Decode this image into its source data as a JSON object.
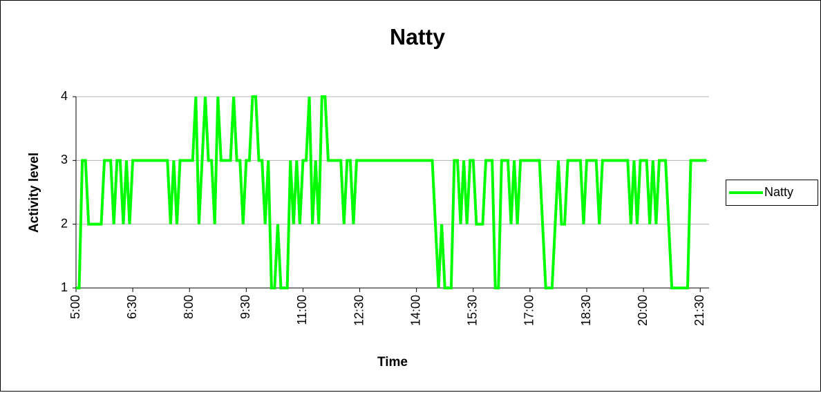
{
  "chart_data": {
    "type": "line",
    "title": "Natty",
    "x_label": "Time",
    "y_label": "Activity level",
    "x": [
      300,
      305,
      310,
      315,
      320,
      325,
      330,
      335,
      340,
      345,
      350,
      355,
      360,
      365,
      370,
      375,
      380,
      385,
      390,
      395,
      400,
      405,
      410,
      415,
      420,
      425,
      430,
      435,
      440,
      445,
      450,
      455,
      460,
      465,
      470,
      475,
      480,
      485,
      490,
      495,
      500,
      505,
      510,
      515,
      520,
      525,
      530,
      535,
      540,
      545,
      550,
      555,
      560,
      565,
      570,
      575,
      580,
      585,
      590,
      595,
      600,
      605,
      610,
      615,
      620,
      625,
      630,
      635,
      640,
      645,
      650,
      655,
      660,
      665,
      670,
      675,
      680,
      685,
      690,
      695,
      700,
      705,
      710,
      715,
      720,
      725,
      730,
      735,
      740,
      745,
      750,
      755,
      760,
      765,
      770,
      775,
      780,
      785,
      790,
      795,
      800,
      805,
      810,
      815,
      820,
      825,
      830,
      835,
      840,
      845,
      850,
      855,
      860,
      865,
      870,
      875,
      880,
      885,
      890,
      895,
      900,
      905,
      910,
      915,
      920,
      925,
      930,
      935,
      940,
      945,
      950,
      955,
      960,
      965,
      970,
      975,
      980,
      985,
      990,
      995,
      1000,
      1005,
      1010,
      1015,
      1020,
      1025,
      1030,
      1035,
      1040,
      1045,
      1050,
      1055,
      1060,
      1065,
      1070,
      1075,
      1080,
      1085,
      1090,
      1095,
      1100,
      1105,
      1110,
      1115,
      1120,
      1125,
      1130,
      1135,
      1140,
      1145,
      1150,
      1155,
      1160,
      1165,
      1170,
      1175,
      1180,
      1185,
      1190,
      1195,
      1200,
      1205,
      1210,
      1215,
      1220,
      1225,
      1230,
      1235,
      1240,
      1245,
      1250,
      1255,
      1260,
      1265,
      1270,
      1275,
      1280,
      1285,
      1290,
      1295,
      1300
    ],
    "series": [
      {
        "name": "Natty",
        "color": "#00ff00",
        "values": [
          1,
          1,
          3,
          3,
          2,
          2,
          2,
          2,
          2,
          3,
          3,
          3,
          2,
          3,
          3,
          2,
          3,
          2,
          3,
          3,
          3,
          3,
          3,
          3,
          3,
          3,
          3,
          3,
          3,
          3,
          2,
          3,
          2,
          3,
          3,
          3,
          3,
          3,
          4,
          2,
          3,
          4,
          3,
          3,
          2,
          4,
          3,
          3,
          3,
          3,
          4,
          3,
          3,
          2,
          3,
          3,
          4,
          4,
          3,
          3,
          2,
          3,
          1,
          1,
          2,
          1,
          1,
          1,
          3,
          2,
          3,
          2,
          3,
          3,
          4,
          2,
          3,
          2,
          4,
          4,
          3,
          3,
          3,
          3,
          3,
          2,
          3,
          3,
          2,
          3,
          3,
          3,
          3,
          3,
          3,
          3,
          3,
          3,
          3,
          3,
          3,
          3,
          3,
          3,
          3,
          3,
          3,
          3,
          3,
          3,
          3,
          3,
          3,
          3,
          2,
          1,
          2,
          1,
          1,
          1,
          3,
          3,
          2,
          3,
          2,
          3,
          3,
          2,
          2,
          2,
          3,
          3,
          3,
          1,
          1,
          3,
          3,
          3,
          2,
          3,
          2,
          3,
          3,
          3,
          3,
          3,
          3,
          3,
          2,
          1,
          1,
          1,
          2,
          3,
          2,
          2,
          3,
          3,
          3,
          3,
          3,
          2,
          3,
          3,
          3,
          3,
          2,
          3,
          3,
          3,
          3,
          3,
          3,
          3,
          3,
          3,
          2,
          3,
          2,
          3,
          3,
          3,
          2,
          3,
          2,
          3,
          3,
          3,
          2,
          1,
          1,
          1,
          1,
          1,
          1,
          3,
          3,
          3,
          3,
          3,
          3
        ]
      }
    ],
    "xlim": [
      300,
      1304
    ],
    "xticks": [
      {
        "value": 300,
        "label": "5:00"
      },
      {
        "value": 390,
        "label": "6:30"
      },
      {
        "value": 480,
        "label": "8:00"
      },
      {
        "value": 570,
        "label": "9:30"
      },
      {
        "value": 660,
        "label": "11:00"
      },
      {
        "value": 750,
        "label": "12:30"
      },
      {
        "value": 840,
        "label": "14:00"
      },
      {
        "value": 930,
        "label": "15:30"
      },
      {
        "value": 1020,
        "label": "17:00"
      },
      {
        "value": 1110,
        "label": "18:30"
      },
      {
        "value": 1200,
        "label": "20:00"
      },
      {
        "value": 1290,
        "label": "21:30"
      }
    ],
    "ylim": [
      1,
      4
    ],
    "yticks": [
      1,
      2,
      3,
      4
    ],
    "grid": true,
    "legend": "right"
  }
}
